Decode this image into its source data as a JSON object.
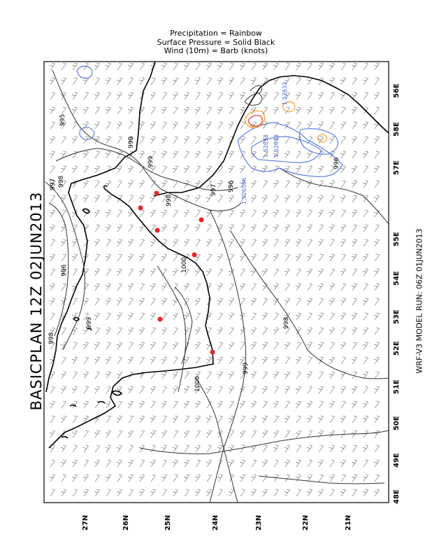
{
  "legend": {
    "line1": "Precipitation = Rainbow",
    "line2": "Surface Pressure = Solid Black",
    "line3": "Wind (10m) = Barb (knots)"
  },
  "title": "BASICPLAN  12Z  02JUN2013",
  "model_run": "WRF-V3 MODEL RUN: 06Z 01JUN2013",
  "lat_labels": [
    "27N",
    "26N",
    "25N",
    "24N",
    "23N",
    "22N",
    "21N"
  ],
  "lon_labels": [
    "56E",
    "57E",
    "58E",
    "55E",
    "54E",
    "53E",
    "52E",
    "51E",
    "50E",
    "49E",
    "48E"
  ],
  "isobar_labels": [
    "995",
    "999",
    "998",
    "997",
    "996",
    "999",
    "998",
    "997",
    "996",
    "1000",
    "999",
    "998",
    "999",
    "1000",
    "998",
    "996"
  ],
  "precip_labels": [
    "1.526566",
    "1.52633",
    "1.52633",
    "1.52633"
  ],
  "colors": {
    "isobar": "#000000",
    "precip_blue": "#4169e1",
    "precip_orange": "#ff8c00",
    "precip_red": "#e01010",
    "station": "#ee2222",
    "barb": "#555555"
  }
}
